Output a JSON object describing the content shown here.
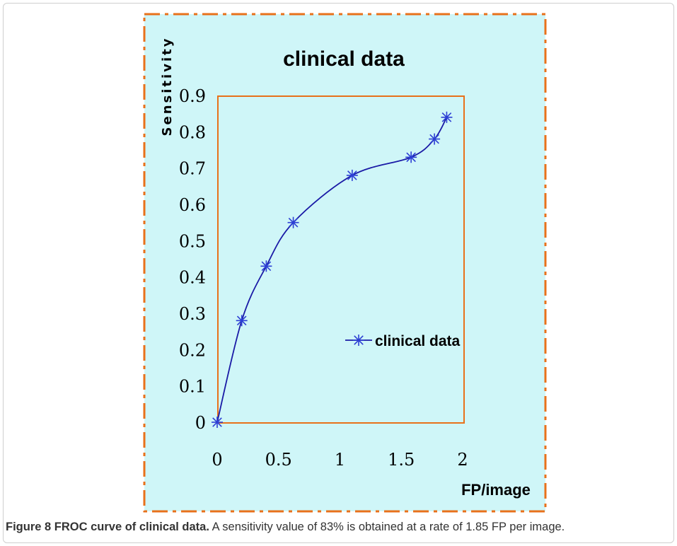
{
  "colors": {
    "panel_background": "#cff6f8",
    "panel_border": "#e8711b",
    "plot_border": "#e8711b",
    "series_line": "#1a1aa6",
    "series_marker": "#2d3fd4",
    "text": "#000000"
  },
  "chart_data": {
    "type": "line",
    "title": "clinical data",
    "xlabel": "FP/image",
    "ylabel": "Sensitivity",
    "xlim": [
      0,
      2
    ],
    "ylim": [
      0,
      0.9
    ],
    "x_ticks": [
      "0",
      "0.5",
      "1",
      "1.5",
      "2"
    ],
    "y_ticks": [
      "0",
      "0.1",
      "0.2",
      "0.3",
      "0.4",
      "0.5",
      "0.6",
      "0.7",
      "0.8",
      "0.9"
    ],
    "grid": false,
    "legend_position": "center-right",
    "series": [
      {
        "name": "clinical data",
        "marker": "asterisk",
        "smooth": true,
        "x": [
          0.0,
          0.2,
          0.4,
          0.62,
          1.1,
          1.58,
          1.77,
          1.87
        ],
        "y": [
          0.0,
          0.28,
          0.43,
          0.55,
          0.68,
          0.73,
          0.78,
          0.84
        ]
      }
    ]
  },
  "caption": {
    "label": "Figure 8",
    "title": "FROC curve of clinical data.",
    "text": "A sensitivity value of 83% is obtained at a rate of 1.85 FP per image."
  }
}
